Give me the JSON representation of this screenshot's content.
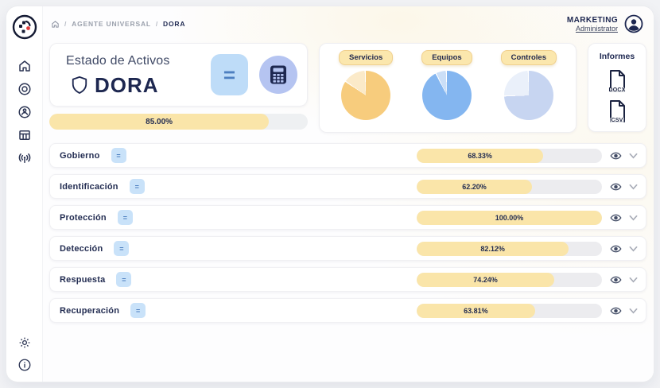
{
  "breadcrumb": {
    "section": "AGENTE UNIVERSAL",
    "current": "DORA",
    "separator": "/"
  },
  "user": {
    "team": "MARKETING",
    "role": "Administrator"
  },
  "sidebar": {
    "top_icons": [
      "home-icon",
      "target-icon",
      "user-scan-icon",
      "table-icon",
      "broadcast-icon"
    ],
    "bottom_icons": [
      "settings-gear-icon",
      "info-icon"
    ]
  },
  "controls": {
    "equals_glyph": "="
  },
  "status_card": {
    "title": "Estado de Activos",
    "framework": "DORA",
    "progress": {
      "label": "85.00%",
      "value": 85
    }
  },
  "chart_data": [
    {
      "type": "pie",
      "title": "Servicios",
      "slices": [
        {
          "label": "cumplido",
          "value": 85,
          "color": "#f7cc7d"
        },
        {
          "label": "restante",
          "value": 15,
          "color": "#fbeac9"
        }
      ]
    },
    {
      "type": "pie",
      "title": "Equipos",
      "slices": [
        {
          "label": "cumplido",
          "value": 93,
          "color": "#84b6f0"
        },
        {
          "label": "restante",
          "value": 7,
          "color": "#cbdff7"
        }
      ]
    },
    {
      "type": "pie",
      "title": "Controles",
      "slices": [
        {
          "label": "cumplido",
          "value": 75,
          "color": "#c7d5f1"
        },
        {
          "label": "restante",
          "value": 25,
          "color": "#eaf0fa"
        }
      ]
    }
  ],
  "reports": {
    "title": "Informes",
    "files": [
      {
        "type": "DOCX"
      },
      {
        "type": "CSV"
      }
    ]
  },
  "rows": [
    {
      "label": "Gobierno",
      "pct_label": "68.33%",
      "value": 68.33
    },
    {
      "label": "Identificación",
      "pct_label": "62.20%",
      "value": 62.2
    },
    {
      "label": "Protección",
      "pct_label": "100.00%",
      "value": 100
    },
    {
      "label": "Detección",
      "pct_label": "82.12%",
      "value": 82.12
    },
    {
      "label": "Respuesta",
      "pct_label": "74.24%",
      "value": 74.24
    },
    {
      "label": "Recuperación",
      "pct_label": "63.81%",
      "value": 63.81
    }
  ],
  "colors": {
    "accent_yellow": "#fae5a9",
    "track_gray": "#ececef",
    "navy": "#1d2750",
    "light_blue": "#bedcf8",
    "periwinkle": "#b5c4f1"
  }
}
